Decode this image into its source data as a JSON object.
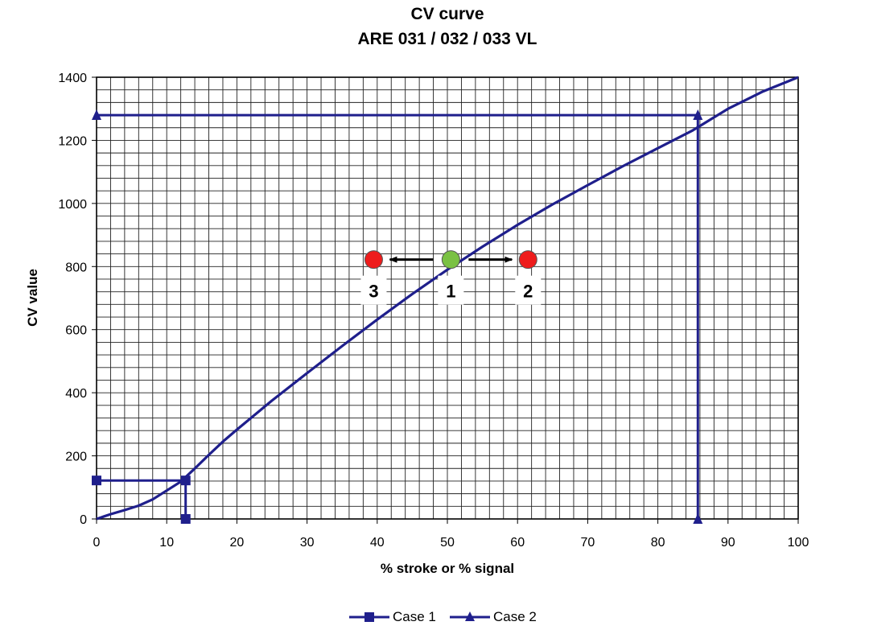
{
  "chart_data": {
    "type": "line",
    "title": "CV curve",
    "subtitle": "ARE 031 / 032 / 033 VL",
    "xlabel": "% stroke or % signal",
    "ylabel": "CV value",
    "xlim": [
      0,
      100
    ],
    "ylim": [
      0,
      1400
    ],
    "xticks": [
      0,
      10,
      20,
      30,
      40,
      50,
      60,
      70,
      80,
      90,
      100
    ],
    "yticks": [
      0,
      200,
      400,
      600,
      800,
      1000,
      1200,
      1400
    ],
    "grid": true,
    "grid_minor_x": 2,
    "grid_minor_y": 40,
    "legend_position": "bottom",
    "curve": {
      "color": "#1f1f8c",
      "x": [
        0,
        2,
        4,
        6,
        8,
        10,
        12,
        14,
        16,
        18,
        20,
        25,
        30,
        35,
        40,
        45,
        50,
        55,
        60,
        65,
        70,
        75,
        80,
        85,
        90,
        95,
        100
      ],
      "y": [
        0,
        15,
        28,
        42,
        62,
        90,
        118,
        160,
        203,
        245,
        283,
        375,
        462,
        548,
        632,
        713,
        790,
        863,
        932,
        997,
        1058,
        1118,
        1175,
        1232,
        1300,
        1355,
        1400
      ]
    },
    "series": [
      {
        "name": "Case 1",
        "marker": "square",
        "color": "#1f1f8c",
        "x": [
          0,
          12.7,
          12.7
        ],
        "y": [
          122,
          122,
          0
        ]
      },
      {
        "name": "Case 2",
        "marker": "triangle",
        "color": "#1f1f8c",
        "x": [
          0,
          85.7,
          85.7
        ],
        "y": [
          1280,
          1280,
          0
        ]
      }
    ],
    "annotations": [
      {
        "label": "1",
        "color": "#7ac143",
        "x": 50.5,
        "y": 822
      },
      {
        "label": "2",
        "color": "#ee1c1c",
        "x": 61.5,
        "y": 822
      },
      {
        "label": "3",
        "color": "#ee1c1c",
        "x": 39.5,
        "y": 822
      }
    ]
  }
}
